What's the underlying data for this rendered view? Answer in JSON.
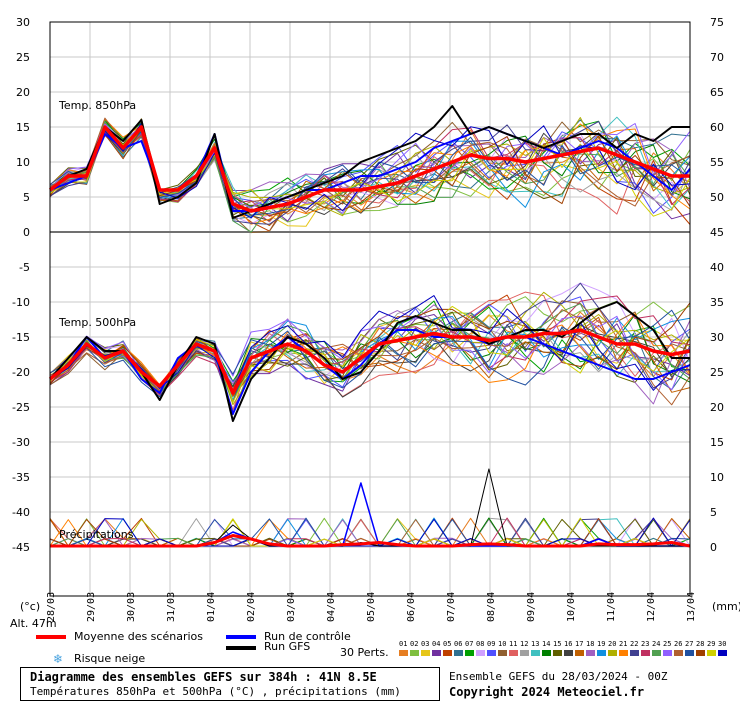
{
  "chart_data": {
    "type": "line",
    "dates": [
      "28/03",
      "29/03",
      "30/03",
      "31/03",
      "01/04",
      "02/04",
      "03/04",
      "04/04",
      "05/04",
      "06/04",
      "07/04",
      "08/04",
      "09/04",
      "10/04",
      "11/04",
      "12/04",
      "13/04"
    ],
    "left_unit": "(°c)",
    "right_unit": "(mm)",
    "left_ticks": [
      30,
      25,
      20,
      15,
      10,
      5,
      0,
      -5,
      -10,
      -15,
      -20,
      -25,
      -30,
      -35,
      -40,
      -45
    ],
    "right_ticks": [
      75,
      70,
      65,
      60,
      55,
      50,
      45,
      40,
      35,
      30,
      25,
      20,
      15,
      10,
      5,
      0
    ],
    "panels": {
      "t850": {
        "label": "Temp. 850hPa",
        "mean": [
          6,
          8,
          8,
          15,
          12,
          15,
          6,
          6,
          8,
          12,
          4,
          3,
          3.5,
          4,
          5,
          6,
          6,
          6,
          6.5,
          7,
          8,
          9,
          10,
          11,
          10.5,
          10.5,
          10,
          10.5,
          11,
          11.5,
          12,
          11,
          10,
          9,
          8,
          8
        ],
        "control": [
          6,
          7,
          8,
          14,
          12,
          13,
          6,
          6,
          8,
          14,
          3,
          3,
          4,
          5,
          6,
          6,
          7,
          8,
          8,
          9,
          10,
          12,
          13,
          14,
          15,
          14,
          13,
          12,
          11,
          12,
          13,
          12,
          10,
          8,
          6,
          9
        ],
        "gfs": [
          6,
          8,
          9,
          15,
          13,
          16,
          4,
          5,
          7,
          14,
          2,
          3,
          4,
          5,
          6,
          7,
          8,
          10,
          11,
          12,
          13,
          15,
          18,
          14,
          15,
          14,
          13,
          12,
          13,
          14,
          14,
          12,
          14,
          13,
          15,
          15
        ]
      },
      "t500": {
        "label": "Temp. 500hPa",
        "mean": [
          -21,
          -19,
          -16,
          -18,
          -17,
          -20,
          -22,
          -19,
          -16,
          -17,
          -23,
          -18,
          -17,
          -16,
          -17,
          -19,
          -20,
          -18,
          -16,
          -15.5,
          -15,
          -14.5,
          -15,
          -15,
          -15.5,
          -15,
          -15,
          -14.5,
          -14.5,
          -14,
          -15,
          -16,
          -16,
          -17,
          -17.5,
          -17
        ],
        "control": [
          -21,
          -19,
          -15,
          -18,
          -17,
          -21,
          -23,
          -18,
          -16,
          -17,
          -26,
          -20,
          -17,
          -15,
          -17,
          -19,
          -21,
          -19,
          -16,
          -14,
          -14,
          -15,
          -15,
          -15,
          -16,
          -15,
          -15,
          -16,
          -17,
          -18,
          -19,
          -20,
          -21,
          -21,
          -20,
          -19
        ],
        "gfs": [
          -21,
          -18,
          -15,
          -17,
          -17,
          -20,
          -24,
          -19,
          -15,
          -16,
          -27,
          -21,
          -18,
          -15,
          -16,
          -18,
          -21,
          -20,
          -17,
          -13,
          -12,
          -13,
          -14,
          -14,
          -16,
          -15,
          -14,
          -14,
          -15,
          -13,
          -11,
          -10,
          -12,
          -14,
          -18,
          -18
        ]
      },
      "precip": {
        "label": "Précipitations",
        "mean": [
          0,
          0,
          0,
          0,
          0,
          0,
          0,
          0,
          0,
          0.5,
          1.5,
          1,
          0.3,
          0,
          0,
          0,
          0.2,
          0.3,
          0.5,
          0.2,
          0,
          0,
          0,
          0.2,
          0.3,
          0.2,
          0,
          0,
          0,
          0,
          0.3,
          0.2,
          0.2,
          0.3,
          0.5,
          0
        ],
        "control": [
          0,
          0,
          0,
          0,
          0,
          0,
          0,
          0,
          0,
          0.5,
          2,
          1,
          0,
          0,
          0,
          0,
          0,
          9,
          0,
          0,
          0,
          0,
          0,
          0,
          0,
          0,
          0,
          0,
          0,
          0,
          1,
          0,
          0,
          0,
          0,
          0
        ],
        "gfs": [
          0,
          0,
          0,
          0,
          0,
          0,
          0,
          0,
          0,
          0.5,
          3,
          1,
          0,
          0,
          0,
          0,
          0,
          0.5,
          0,
          0,
          0,
          0,
          0,
          0,
          11,
          0,
          0,
          0,
          0,
          0,
          0,
          0,
          0,
          0,
          0,
          0
        ]
      }
    }
  },
  "altitude": "Alt. 47m",
  "legend": {
    "mean": "Moyenne des scénarios",
    "control": "Run de contrôle",
    "gfs": "Run GFS",
    "snow": "Risque neige",
    "perts": "30 Perts."
  },
  "pert_numbers": [
    "01",
    "02",
    "03",
    "04",
    "05",
    "06",
    "07",
    "08",
    "09",
    "10",
    "11",
    "12",
    "13",
    "14",
    "15",
    "16",
    "17",
    "18",
    "19",
    "20",
    "21",
    "22",
    "23",
    "24",
    "25",
    "26",
    "27",
    "28",
    "29",
    "30"
  ],
  "pert_colors": [
    "#e67e22",
    "#7fbf3f",
    "#e6c619",
    "#7030a0",
    "#c04000",
    "#307090",
    "#00a000",
    "#d0a0ff",
    "#5050ff",
    "#906030",
    "#e06060",
    "#a0a0a0",
    "#40c0c0",
    "#008000",
    "#606000",
    "#404040",
    "#c06000",
    "#a060c0",
    "#1090e0",
    "#b0b000",
    "#ff8000",
    "#404090",
    "#c03060",
    "#50a050",
    "#9060ff",
    "#b06030",
    "#2050a0",
    "#a04000",
    "#d0d000",
    "#0000c0"
  ],
  "colors": {
    "mean": "#ff0000",
    "control": "#0000ff",
    "gfs": "#000000"
  },
  "footer": {
    "title": "Diagramme des ensembles GEFS sur 384h : 41N 8.5E",
    "subtitle": "Températures 850hPa et 500hPa (°C) , précipitations (mm)",
    "run": "Ensemble GEFS du 28/03/2024 - 00Z",
    "copyright": "Copyright 2024 Meteociel.fr"
  }
}
